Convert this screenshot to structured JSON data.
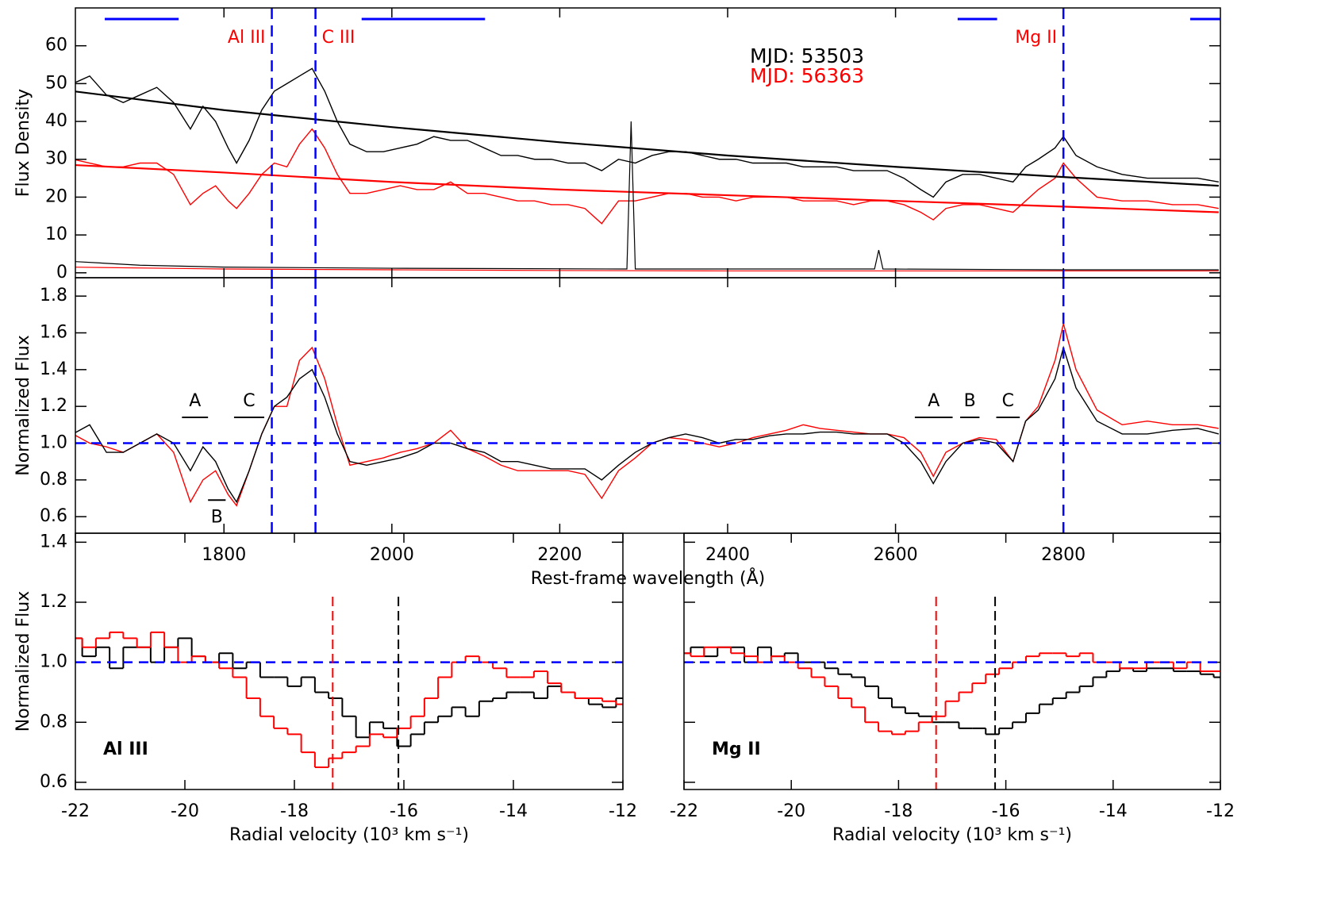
{
  "chart_data": [
    {
      "type": "line",
      "ylabel": "Flux Density",
      "xlim": [
        1623,
        2987
      ],
      "ylim": [
        -1.3,
        70
      ],
      "yticks": [
        0,
        10,
        20,
        30,
        40,
        50,
        60
      ],
      "x": [
        1620,
        1640,
        1660,
        1680,
        1700,
        1720,
        1740,
        1760,
        1775,
        1790,
        1805,
        1815,
        1830,
        1845,
        1860,
        1875,
        1890,
        1905,
        1920,
        1935,
        1950,
        1970,
        1990,
        2010,
        2030,
        2050,
        2070,
        2090,
        2110,
        2130,
        2150,
        2170,
        2190,
        2210,
        2230,
        2250,
        2270,
        2290,
        2310,
        2330,
        2350,
        2370,
        2390,
        2410,
        2430,
        2450,
        2470,
        2490,
        2510,
        2530,
        2550,
        2570,
        2590,
        2610,
        2630,
        2645,
        2660,
        2680,
        2700,
        2720,
        2740,
        2755,
        2770,
        2790,
        2800,
        2815,
        2840,
        2870,
        2900,
        2930,
        2960,
        2985
      ],
      "series": [
        {
          "name": "MJD: 53503",
          "color": "#000000",
          "values": [
            50,
            52,
            47,
            45,
            47,
            49,
            45,
            38,
            44,
            40,
            33,
            29,
            35,
            43,
            48,
            50,
            52,
            54,
            48,
            40,
            34,
            32,
            32,
            33,
            34,
            36,
            35,
            35,
            33,
            31,
            31,
            30,
            30,
            29,
            29,
            27,
            30,
            29,
            31,
            32,
            32,
            31,
            30,
            30,
            29,
            29,
            29,
            28,
            28,
            28,
            27,
            27,
            27,
            25,
            22,
            20,
            24,
            26,
            26,
            25,
            24,
            28,
            30,
            33,
            36,
            31,
            28,
            26,
            25,
            25,
            25,
            24
          ]
        },
        {
          "name": "MJD: 56363",
          "color": "#ff0000",
          "values": [
            30,
            29,
            28,
            28,
            29,
            29,
            26,
            18,
            21,
            23,
            19,
            17,
            21,
            26,
            29,
            28,
            34,
            38,
            33,
            26,
            21,
            21,
            22,
            23,
            22,
            22,
            24,
            21,
            21,
            20,
            19,
            19,
            18,
            18,
            17,
            13,
            19,
            19,
            20,
            21,
            21,
            20,
            20,
            19,
            20,
            20,
            20,
            19,
            19,
            19,
            18,
            19,
            19,
            18,
            16,
            14,
            17,
            18,
            18,
            17,
            16,
            19,
            22,
            25,
            29,
            25,
            20,
            19,
            19,
            18,
            18,
            17
          ]
        },
        {
          "color": "#000000",
          "x": [
            1620,
            1800,
            2000,
            2200,
            2400,
            2600,
            2800,
            2985
          ],
          "values": [
            48,
            43,
            38.5,
            34.5,
            31,
            28,
            25.3,
            23
          ]
        },
        {
          "color": "#ff0000",
          "x": [
            1620,
            1800,
            2000,
            2200,
            2400,
            2600,
            2800,
            2985
          ],
          "values": [
            28.5,
            26.5,
            24,
            22,
            20.5,
            19,
            17.5,
            16
          ]
        },
        {
          "color": "#000000",
          "x": [
            1620,
            1700,
            1800,
            2000,
            2280,
            2285,
            2290,
            2400,
            2575,
            2580,
            2585,
            2800,
            2985
          ],
          "values": [
            3,
            2,
            1.5,
            1.2,
            1,
            40,
            1,
            1,
            1,
            6,
            1,
            0.8,
            0.8
          ]
        },
        {
          "color": "#ff0000",
          "x": [
            1620,
            1800,
            2000,
            2200,
            2400,
            2600,
            2800,
            2985
          ],
          "values": [
            1.5,
            1,
            0.8,
            0.6,
            0.5,
            0.5,
            0.5,
            0.5
          ]
        }
      ],
      "lines": [
        {
          "label": "Al  III",
          "x": 1857
        },
        {
          "label": "C  III",
          "x": 1909
        },
        {
          "label": "Mg  II",
          "x": 2800
        }
      ],
      "line_color": "#0000ff",
      "label_color": "#ff0000",
      "windows": [
        [
          1658,
          1746
        ],
        [
          1964,
          2111
        ],
        [
          2674,
          2721
        ],
        [
          2951,
          2987
        ]
      ],
      "window_color": "#0000ff"
    },
    {
      "type": "line",
      "xlabel": "Rest-frame wavelength (Å)",
      "ylabel": "Normalized Flux",
      "xlim": [
        1623,
        2987
      ],
      "ylim": [
        0.51,
        1.9
      ],
      "xticks": [
        1800,
        2000,
        2200,
        2400,
        2600,
        2800
      ],
      "yticks": [
        0.6,
        0.8,
        {
          "value": 1,
          "label": "1.0"
        },
        1.2,
        1.4,
        1.6,
        1.8
      ],
      "x": [
        1620,
        1640,
        1660,
        1680,
        1700,
        1720,
        1740,
        1760,
        1775,
        1790,
        1805,
        1815,
        1830,
        1845,
        1860,
        1875,
        1890,
        1905,
        1920,
        1935,
        1950,
        1970,
        1990,
        2010,
        2030,
        2050,
        2070,
        2090,
        2110,
        2130,
        2150,
        2170,
        2190,
        2210,
        2230,
        2250,
        2270,
        2290,
        2310,
        2330,
        2350,
        2370,
        2390,
        2410,
        2430,
        2450,
        2470,
        2490,
        2510,
        2530,
        2550,
        2570,
        2590,
        2610,
        2630,
        2645,
        2660,
        2680,
        2700,
        2720,
        2740,
        2755,
        2770,
        2790,
        2800,
        2815,
        2840,
        2870,
        2900,
        2930,
        2960,
        2985
      ],
      "series": [
        {
          "color": "#ff0000",
          "values": [
            1.05,
            1.0,
            0.98,
            0.95,
            1.0,
            1.05,
            0.95,
            0.68,
            0.8,
            0.85,
            0.72,
            0.66,
            0.85,
            1.05,
            1.2,
            1.2,
            1.45,
            1.52,
            1.35,
            1.1,
            0.88,
            0.9,
            0.92,
            0.95,
            0.97,
            1.0,
            1.07,
            0.97,
            0.93,
            0.88,
            0.85,
            0.85,
            0.85,
            0.85,
            0.83,
            0.7,
            0.85,
            0.92,
            1.0,
            1.03,
            1.02,
            1.0,
            0.98,
            1.0,
            1.03,
            1.05,
            1.07,
            1.1,
            1.08,
            1.07,
            1.06,
            1.05,
            1.05,
            1.03,
            0.95,
            0.82,
            0.95,
            1.0,
            1.03,
            1.02,
            0.9,
            1.12,
            1.2,
            1.45,
            1.65,
            1.4,
            1.18,
            1.1,
            1.12,
            1.1,
            1.1,
            1.08
          ]
        },
        {
          "color": "#000000",
          "values": [
            1.05,
            1.1,
            0.95,
            0.95,
            1.0,
            1.05,
            1.0,
            0.85,
            0.98,
            0.9,
            0.75,
            0.68,
            0.85,
            1.05,
            1.2,
            1.25,
            1.35,
            1.4,
            1.25,
            1.05,
            0.9,
            0.88,
            0.9,
            0.92,
            0.95,
            1.0,
            1.0,
            0.97,
            0.95,
            0.9,
            0.9,
            0.88,
            0.86,
            0.86,
            0.86,
            0.8,
            0.88,
            0.95,
            1.0,
            1.03,
            1.05,
            1.03,
            1.0,
            1.02,
            1.02,
            1.04,
            1.05,
            1.05,
            1.06,
            1.06,
            1.05,
            1.05,
            1.05,
            1.0,
            0.9,
            0.78,
            0.9,
            1.0,
            1.02,
            1.0,
            0.9,
            1.12,
            1.18,
            1.35,
            1.52,
            1.3,
            1.12,
            1.05,
            1.05,
            1.07,
            1.08,
            1.05
          ]
        }
      ],
      "vlines": [
        1857,
        1909,
        2800
      ],
      "hline": 1,
      "line_color": "#0000ff",
      "features": [
        {
          "label": "A",
          "range": [
            1750,
            1781
          ],
          "y": 1.14
        },
        {
          "label": "B",
          "range": [
            1781,
            1802
          ],
          "y": 0.69
        },
        {
          "label": "C",
          "range": [
            1812,
            1848
          ],
          "y": 1.14
        },
        {
          "label": "A",
          "range": [
            2623,
            2668
          ],
          "y": 1.14
        },
        {
          "label": "B",
          "range": [
            2677,
            2700
          ],
          "y": 1.14
        },
        {
          "label": "C",
          "range": [
            2720,
            2748
          ],
          "y": 1.14
        }
      ]
    },
    {
      "type": "line",
      "steps": true,
      "label": "Al  III",
      "xlabel": "Radial velocity (10³ km s⁻¹)",
      "ylabel": "Normalized Flux",
      "xlim": [
        -22,
        -12
      ],
      "ylim": [
        0.576,
        1.43
      ],
      "xticks": [
        -22,
        -20,
        -18,
        -16,
        -14,
        -12
      ],
      "yticks": [
        0.6,
        0.8,
        {
          "value": 1,
          "label": "1.0"
        },
        1.2,
        1.4
      ],
      "x": [
        -22,
        -21.75,
        -21.5,
        -21.25,
        -21,
        -20.75,
        -20.5,
        -20.25,
        -20,
        -19.75,
        -19.5,
        -19.25,
        -19,
        -18.75,
        -18.5,
        -18.25,
        -18,
        -17.75,
        -17.5,
        -17.25,
        -17,
        -16.75,
        -16.5,
        -16.25,
        -16,
        -15.75,
        -15.5,
        -15.25,
        -15,
        -14.75,
        -14.5,
        -14.25,
        -14,
        -13.75,
        -13.5,
        -13.25,
        -13,
        -12.75,
        -12.5,
        -12.25,
        -12
      ],
      "series": [
        {
          "color": "#000000",
          "values": [
            1.08,
            1.02,
            1.05,
            0.98,
            1.05,
            1.05,
            1.0,
            1.05,
            1.08,
            1.02,
            1.0,
            1.03,
            0.98,
            1.0,
            0.95,
            0.95,
            0.92,
            0.95,
            0.9,
            0.88,
            0.82,
            0.75,
            0.8,
            0.78,
            0.72,
            0.76,
            0.8,
            0.82,
            0.85,
            0.82,
            0.87,
            0.88,
            0.9,
            0.9,
            0.88,
            0.92,
            0.9,
            0.88,
            0.86,
            0.85,
            0.88
          ]
        },
        {
          "color": "#ff0000",
          "values": [
            1.08,
            1.05,
            1.08,
            1.1,
            1.08,
            1.05,
            1.1,
            1.05,
            1.0,
            1.02,
            1.0,
            0.98,
            0.95,
            0.88,
            0.82,
            0.78,
            0.76,
            0.7,
            0.65,
            0.68,
            0.7,
            0.72,
            0.76,
            0.75,
            0.78,
            0.82,
            0.88,
            0.95,
            1.0,
            1.02,
            1.0,
            0.98,
            0.95,
            0.95,
            0.97,
            0.93,
            0.9,
            0.88,
            0.88,
            0.87,
            0.86
          ]
        }
      ],
      "hline": 1,
      "line_color": "#0000ff",
      "markers": [
        {
          "x": -17.3,
          "color": "#ff0000"
        },
        {
          "x": -16.1,
          "color": "#000000"
        }
      ]
    },
    {
      "type": "line",
      "steps": true,
      "label": "Mg  II",
      "xlabel": "Radial velocity (10³ km s⁻¹)",
      "xlim": [
        -22,
        -12
      ],
      "ylim": [
        0.576,
        1.43
      ],
      "xticks": [
        -22,
        -20,
        -18,
        -16,
        -14,
        -12
      ],
      "x": [
        -22,
        -21.75,
        -21.5,
        -21.25,
        -21,
        -20.75,
        -20.5,
        -20.25,
        -20,
        -19.75,
        -19.5,
        -19.25,
        -19,
        -18.75,
        -18.5,
        -18.25,
        -18,
        -17.75,
        -17.5,
        -17.25,
        -17,
        -16.75,
        -16.5,
        -16.25,
        -16,
        -15.75,
        -15.5,
        -15.25,
        -15,
        -14.75,
        -14.5,
        -14.25,
        -14,
        -13.75,
        -13.5,
        -13.25,
        -13,
        -12.75,
        -12.5,
        -12.25,
        -12
      ],
      "series": [
        {
          "color": "#000000",
          "values": [
            1.03,
            1.05,
            1.02,
            1.05,
            1.05,
            1.0,
            1.05,
            1.02,
            1.03,
            1.0,
            1.0,
            0.98,
            0.96,
            0.95,
            0.92,
            0.88,
            0.85,
            0.83,
            0.82,
            0.8,
            0.8,
            0.78,
            0.78,
            0.76,
            0.78,
            0.8,
            0.83,
            0.86,
            0.88,
            0.9,
            0.92,
            0.95,
            0.97,
            0.98,
            0.97,
            0.98,
            0.98,
            0.97,
            0.97,
            0.96,
            0.95
          ]
        },
        {
          "color": "#ff0000",
          "values": [
            1.03,
            1.02,
            1.05,
            1.05,
            1.03,
            1.02,
            1.0,
            1.02,
            1.0,
            0.98,
            0.95,
            0.92,
            0.88,
            0.85,
            0.8,
            0.77,
            0.76,
            0.77,
            0.8,
            0.82,
            0.87,
            0.9,
            0.93,
            0.96,
            0.98,
            1.0,
            1.02,
            1.03,
            1.03,
            1.02,
            1.03,
            1.0,
            1.0,
            0.98,
            0.98,
            1.0,
            1.0,
            0.98,
            1.0,
            0.97,
            0.97
          ]
        }
      ],
      "hline": 1,
      "line_color": "#0000ff",
      "markers": [
        {
          "x": -17.3,
          "color": "#ff0000"
        },
        {
          "x": -16.2,
          "color": "#000000"
        }
      ]
    }
  ]
}
